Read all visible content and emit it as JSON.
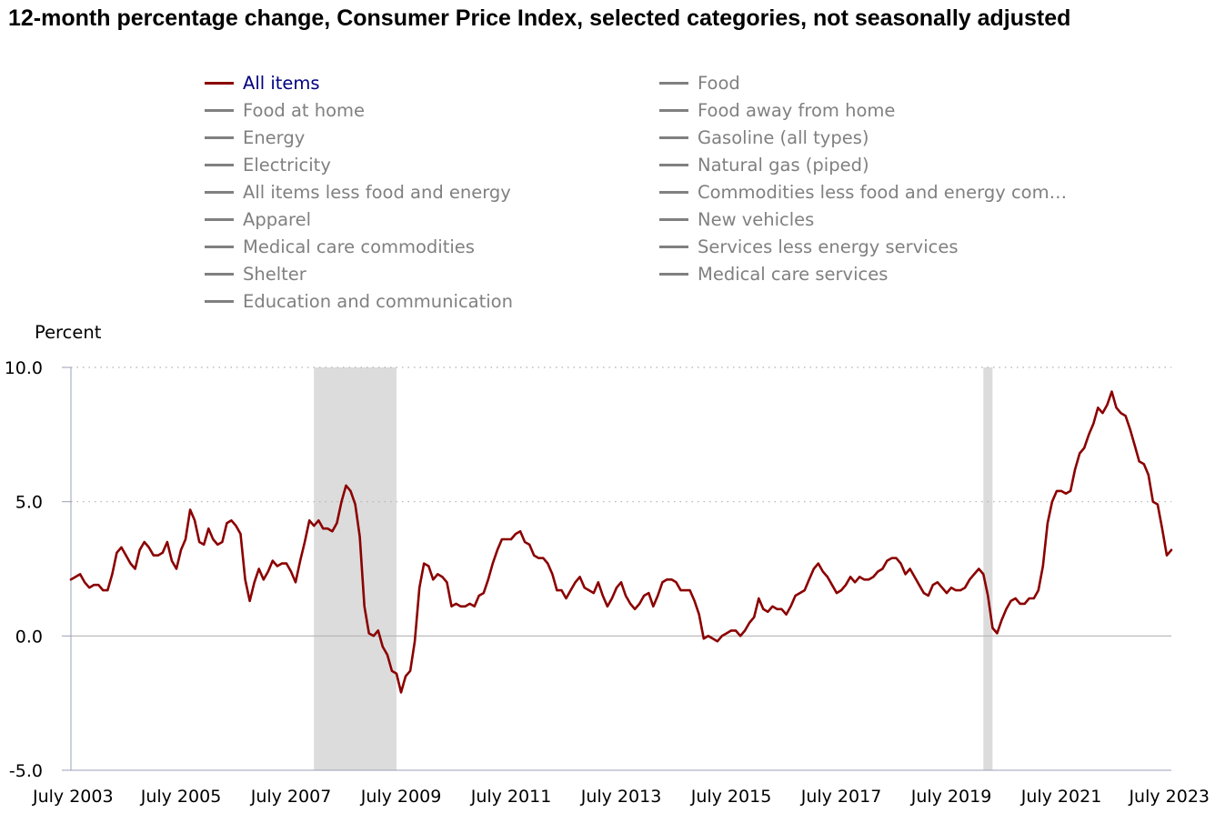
{
  "chart_data": {
    "type": "line",
    "title": "12-month percentage change, Consumer Price Index, selected categories, not seasonally adjusted",
    "ylabel": "Percent",
    "ylim": [
      -5,
      10
    ],
    "yticks": [
      "10.0",
      "5.0",
      "0.0",
      "-5.0"
    ],
    "ytick_values": [
      10,
      5,
      0,
      -5
    ],
    "xticks": [
      "July 2003",
      "July 2005",
      "July 2007",
      "July 2009",
      "July 2011",
      "July 2013",
      "July 2015",
      "July 2017",
      "July 2019",
      "July 2021",
      "July 2023"
    ],
    "x_start": "2003-07",
    "x_end": "2023-07",
    "recessions": [
      {
        "start": "2007-12",
        "end": "2009-06"
      },
      {
        "start": "2020-02",
        "end": "2020-04"
      }
    ],
    "legend": [
      {
        "label": "All items",
        "active": true
      },
      {
        "label": "Food",
        "active": false
      },
      {
        "label": "Food at home",
        "active": false
      },
      {
        "label": "Food away from home",
        "active": false
      },
      {
        "label": "Energy",
        "active": false
      },
      {
        "label": "Gasoline (all types)",
        "active": false
      },
      {
        "label": "Electricity",
        "active": false
      },
      {
        "label": "Natural gas (piped)",
        "active": false
      },
      {
        "label": "All items less food and energy",
        "active": false
      },
      {
        "label": "Commodities less food and energy com…",
        "active": false
      },
      {
        "label": "Apparel",
        "active": false
      },
      {
        "label": "New vehicles",
        "active": false
      },
      {
        "label": "Medical care commodities",
        "active": false
      },
      {
        "label": "Services less energy services",
        "active": false
      },
      {
        "label": "Shelter",
        "active": false
      },
      {
        "label": "Medical care services",
        "active": false
      },
      {
        "label": "Education and communication",
        "active": false
      }
    ],
    "series": [
      {
        "name": "All items",
        "color": "#8b0000",
        "points": [
          [
            "2003-07",
            2.1
          ],
          [
            "2003-09",
            2.3
          ],
          [
            "2003-10",
            2.0
          ],
          [
            "2003-11",
            1.8
          ],
          [
            "2003-12",
            1.9
          ],
          [
            "2004-01",
            1.9
          ],
          [
            "2004-02",
            1.7
          ],
          [
            "2004-03",
            1.7
          ],
          [
            "2004-04",
            2.3
          ],
          [
            "2004-05",
            3.1
          ],
          [
            "2004-06",
            3.3
          ],
          [
            "2004-07",
            3.0
          ],
          [
            "2004-08",
            2.7
          ],
          [
            "2004-09",
            2.5
          ],
          [
            "2004-10",
            3.2
          ],
          [
            "2004-11",
            3.5
          ],
          [
            "2004-12",
            3.3
          ],
          [
            "2005-01",
            3.0
          ],
          [
            "2005-02",
            3.0
          ],
          [
            "2005-03",
            3.1
          ],
          [
            "2005-04",
            3.5
          ],
          [
            "2005-05",
            2.8
          ],
          [
            "2005-06",
            2.5
          ],
          [
            "2005-07",
            3.2
          ],
          [
            "2005-08",
            3.6
          ],
          [
            "2005-09",
            4.7
          ],
          [
            "2005-10",
            4.3
          ],
          [
            "2005-11",
            3.5
          ],
          [
            "2005-12",
            3.4
          ],
          [
            "2006-01",
            4.0
          ],
          [
            "2006-02",
            3.6
          ],
          [
            "2006-03",
            3.4
          ],
          [
            "2006-04",
            3.5
          ],
          [
            "2006-05",
            4.2
          ],
          [
            "2006-06",
            4.3
          ],
          [
            "2006-07",
            4.1
          ],
          [
            "2006-08",
            3.8
          ],
          [
            "2006-09",
            2.1
          ],
          [
            "2006-10",
            1.3
          ],
          [
            "2006-11",
            2.0
          ],
          [
            "2006-12",
            2.5
          ],
          [
            "2007-01",
            2.1
          ],
          [
            "2007-02",
            2.4
          ],
          [
            "2007-03",
            2.8
          ],
          [
            "2007-04",
            2.6
          ],
          [
            "2007-05",
            2.7
          ],
          [
            "2007-06",
            2.7
          ],
          [
            "2007-07",
            2.4
          ],
          [
            "2007-08",
            2.0
          ],
          [
            "2007-09",
            2.8
          ],
          [
            "2007-10",
            3.5
          ],
          [
            "2007-11",
            4.3
          ],
          [
            "2007-12",
            4.1
          ],
          [
            "2008-01",
            4.3
          ],
          [
            "2008-02",
            4.0
          ],
          [
            "2008-03",
            4.0
          ],
          [
            "2008-04",
            3.9
          ],
          [
            "2008-05",
            4.2
          ],
          [
            "2008-06",
            5.0
          ],
          [
            "2008-07",
            5.6
          ],
          [
            "2008-08",
            5.4
          ],
          [
            "2008-09",
            4.9
          ],
          [
            "2008-10",
            3.7
          ],
          [
            "2008-11",
            1.1
          ],
          [
            "2008-12",
            0.1
          ],
          [
            "2009-01",
            0.0
          ],
          [
            "2009-02",
            0.2
          ],
          [
            "2009-03",
            -0.4
          ],
          [
            "2009-04",
            -0.7
          ],
          [
            "2009-05",
            -1.3
          ],
          [
            "2009-06",
            -1.4
          ],
          [
            "2009-07",
            -2.1
          ],
          [
            "2009-08",
            -1.5
          ],
          [
            "2009-09",
            -1.3
          ],
          [
            "2009-10",
            -0.2
          ],
          [
            "2009-11",
            1.8
          ],
          [
            "2009-12",
            2.7
          ],
          [
            "2010-01",
            2.6
          ],
          [
            "2010-02",
            2.1
          ],
          [
            "2010-03",
            2.3
          ],
          [
            "2010-04",
            2.2
          ],
          [
            "2010-05",
            2.0
          ],
          [
            "2010-06",
            1.1
          ],
          [
            "2010-07",
            1.2
          ],
          [
            "2010-08",
            1.1
          ],
          [
            "2010-09",
            1.1
          ],
          [
            "2010-10",
            1.2
          ],
          [
            "2010-11",
            1.1
          ],
          [
            "2010-12",
            1.5
          ],
          [
            "2011-01",
            1.6
          ],
          [
            "2011-02",
            2.1
          ],
          [
            "2011-03",
            2.7
          ],
          [
            "2011-04",
            3.2
          ],
          [
            "2011-05",
            3.6
          ],
          [
            "2011-06",
            3.6
          ],
          [
            "2011-07",
            3.6
          ],
          [
            "2011-08",
            3.8
          ],
          [
            "2011-09",
            3.9
          ],
          [
            "2011-10",
            3.5
          ],
          [
            "2011-11",
            3.4
          ],
          [
            "2011-12",
            3.0
          ],
          [
            "2012-01",
            2.9
          ],
          [
            "2012-02",
            2.9
          ],
          [
            "2012-03",
            2.7
          ],
          [
            "2012-04",
            2.3
          ],
          [
            "2012-05",
            1.7
          ],
          [
            "2012-06",
            1.7
          ],
          [
            "2012-07",
            1.4
          ],
          [
            "2012-08",
            1.7
          ],
          [
            "2012-09",
            2.0
          ],
          [
            "2012-10",
            2.2
          ],
          [
            "2012-11",
            1.8
          ],
          [
            "2012-12",
            1.7
          ],
          [
            "2013-01",
            1.6
          ],
          [
            "2013-02",
            2.0
          ],
          [
            "2013-03",
            1.5
          ],
          [
            "2013-04",
            1.1
          ],
          [
            "2013-05",
            1.4
          ],
          [
            "2013-06",
            1.8
          ],
          [
            "2013-07",
            2.0
          ],
          [
            "2013-08",
            1.5
          ],
          [
            "2013-09",
            1.2
          ],
          [
            "2013-10",
            1.0
          ],
          [
            "2013-11",
            1.2
          ],
          [
            "2013-12",
            1.5
          ],
          [
            "2014-01",
            1.6
          ],
          [
            "2014-02",
            1.1
          ],
          [
            "2014-03",
            1.5
          ],
          [
            "2014-04",
            2.0
          ],
          [
            "2014-05",
            2.1
          ],
          [
            "2014-06",
            2.1
          ],
          [
            "2014-07",
            2.0
          ],
          [
            "2014-08",
            1.7
          ],
          [
            "2014-09",
            1.7
          ],
          [
            "2014-10",
            1.7
          ],
          [
            "2014-11",
            1.3
          ],
          [
            "2014-12",
            0.8
          ],
          [
            "2015-01",
            -0.1
          ],
          [
            "2015-02",
            0.0
          ],
          [
            "2015-03",
            -0.1
          ],
          [
            "2015-04",
            -0.2
          ],
          [
            "2015-05",
            0.0
          ],
          [
            "2015-06",
            0.1
          ],
          [
            "2015-07",
            0.2
          ],
          [
            "2015-08",
            0.2
          ],
          [
            "2015-09",
            0.0
          ],
          [
            "2015-10",
            0.2
          ],
          [
            "2015-11",
            0.5
          ],
          [
            "2015-12",
            0.7
          ],
          [
            "2016-01",
            1.4
          ],
          [
            "2016-02",
            1.0
          ],
          [
            "2016-03",
            0.9
          ],
          [
            "2016-04",
            1.1
          ],
          [
            "2016-05",
            1.0
          ],
          [
            "2016-06",
            1.0
          ],
          [
            "2016-07",
            0.8
          ],
          [
            "2016-08",
            1.1
          ],
          [
            "2016-09",
            1.5
          ],
          [
            "2016-10",
            1.6
          ],
          [
            "2016-11",
            1.7
          ],
          [
            "2016-12",
            2.1
          ],
          [
            "2017-01",
            2.5
          ],
          [
            "2017-02",
            2.7
          ],
          [
            "2017-03",
            2.4
          ],
          [
            "2017-04",
            2.2
          ],
          [
            "2017-05",
            1.9
          ],
          [
            "2017-06",
            1.6
          ],
          [
            "2017-07",
            1.7
          ],
          [
            "2017-08",
            1.9
          ],
          [
            "2017-09",
            2.2
          ],
          [
            "2017-10",
            2.0
          ],
          [
            "2017-11",
            2.2
          ],
          [
            "2017-12",
            2.1
          ],
          [
            "2018-01",
            2.1
          ],
          [
            "2018-02",
            2.2
          ],
          [
            "2018-03",
            2.4
          ],
          [
            "2018-04",
            2.5
          ],
          [
            "2018-05",
            2.8
          ],
          [
            "2018-06",
            2.9
          ],
          [
            "2018-07",
            2.9
          ],
          [
            "2018-08",
            2.7
          ],
          [
            "2018-09",
            2.3
          ],
          [
            "2018-10",
            2.5
          ],
          [
            "2018-11",
            2.2
          ],
          [
            "2018-12",
            1.9
          ],
          [
            "2019-01",
            1.6
          ],
          [
            "2019-02",
            1.5
          ],
          [
            "2019-03",
            1.9
          ],
          [
            "2019-04",
            2.0
          ],
          [
            "2019-05",
            1.8
          ],
          [
            "2019-06",
            1.6
          ],
          [
            "2019-07",
            1.8
          ],
          [
            "2019-08",
            1.7
          ],
          [
            "2019-09",
            1.7
          ],
          [
            "2019-10",
            1.8
          ],
          [
            "2019-11",
            2.1
          ],
          [
            "2019-12",
            2.3
          ],
          [
            "2020-01",
            2.5
          ],
          [
            "2020-02",
            2.3
          ],
          [
            "2020-03",
            1.5
          ],
          [
            "2020-04",
            0.3
          ],
          [
            "2020-05",
            0.1
          ],
          [
            "2020-06",
            0.6
          ],
          [
            "2020-07",
            1.0
          ],
          [
            "2020-08",
            1.3
          ],
          [
            "2020-09",
            1.4
          ],
          [
            "2020-10",
            1.2
          ],
          [
            "2020-11",
            1.2
          ],
          [
            "2020-12",
            1.4
          ],
          [
            "2021-01",
            1.4
          ],
          [
            "2021-02",
            1.7
          ],
          [
            "2021-03",
            2.6
          ],
          [
            "2021-04",
            4.2
          ],
          [
            "2021-05",
            5.0
          ],
          [
            "2021-06",
            5.4
          ],
          [
            "2021-07",
            5.4
          ],
          [
            "2021-08",
            5.3
          ],
          [
            "2021-09",
            5.4
          ],
          [
            "2021-10",
            6.2
          ],
          [
            "2021-11",
            6.8
          ],
          [
            "2021-12",
            7.0
          ],
          [
            "2022-01",
            7.5
          ],
          [
            "2022-02",
            7.9
          ],
          [
            "2022-03",
            8.5
          ],
          [
            "2022-04",
            8.3
          ],
          [
            "2022-05",
            8.6
          ],
          [
            "2022-06",
            9.1
          ],
          [
            "2022-07",
            8.5
          ],
          [
            "2022-08",
            8.3
          ],
          [
            "2022-09",
            8.2
          ],
          [
            "2022-10",
            7.7
          ],
          [
            "2022-11",
            7.1
          ],
          [
            "2022-12",
            6.5
          ],
          [
            "2023-01",
            6.4
          ],
          [
            "2023-02",
            6.0
          ],
          [
            "2023-03",
            5.0
          ],
          [
            "2023-04",
            4.9
          ],
          [
            "2023-05",
            4.0
          ],
          [
            "2023-06",
            3.0
          ],
          [
            "2023-07",
            3.2
          ]
        ]
      }
    ],
    "grid": true
  }
}
